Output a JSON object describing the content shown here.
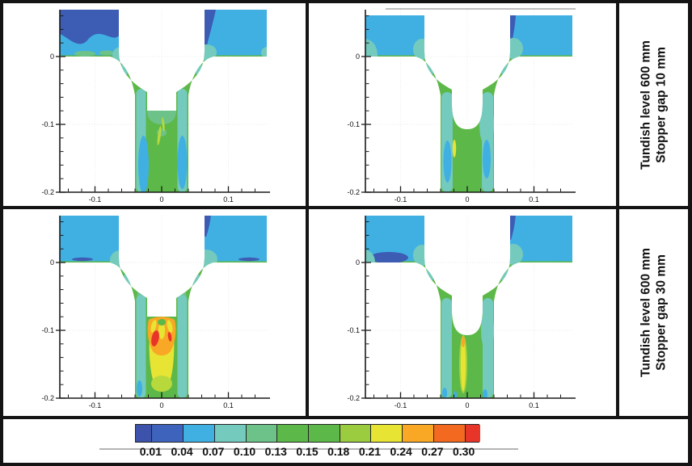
{
  "chart_data": {
    "type": "heatmap",
    "title": "",
    "subtitle": "",
    "layout": "2x2 contour panels with shared colorbar legend and rotated row labels",
    "axes": {
      "x_ticks": [
        {
          "v": -0.1,
          "label": "-0.1"
        },
        {
          "v": 0,
          "label": "0"
        },
        {
          "v": 0.1,
          "label": "0.1"
        }
      ],
      "y_ticks": [
        {
          "v": 0,
          "label": "0"
        },
        {
          "v": -0.1,
          "label": "-0.1"
        },
        {
          "v": -0.2,
          "label": "-0.2"
        }
      ],
      "minor_step": 0.02,
      "x_range": [
        -0.153,
        0.158
      ],
      "y_range": [
        -0.2,
        0.069
      ],
      "grid": "faint dotted gridlines at major ticks"
    },
    "colorbar": {
      "labels": [
        "0.01",
        "0.04",
        "0.07",
        "0.10",
        "0.13",
        "0.15",
        "0.18",
        "0.21",
        "0.24",
        "0.27",
        "0.30"
      ],
      "colors": [
        "#3c52ab",
        "#3e63bc",
        "#40b0e3",
        "#74cabc",
        "#6cc289",
        "#5cb848",
        "#5cb848",
        "#9bcb3e",
        "#e8e434",
        "#f9a825",
        "#f2691f",
        "#e8352a"
      ],
      "position": "bottom, horizontal, first and last bands half-width"
    },
    "rows": [
      {
        "label_line1": "Tundish level 600 mm",
        "label_line2": "Stopper gap 10 mm"
      },
      {
        "label_line1": "Tundish level 600 mm",
        "label_line2": "Stopper gap 30 mm"
      }
    ],
    "panels": [
      {
        "position": "top-left",
        "stopper_nose": "flat-bottom",
        "row_label": "Tundish level 600 mm, Stopper gap 10 mm",
        "peak_band": "0.13-0.18 green core in nozzle; dark blue (<0.04) pools at top of tundish strips"
      },
      {
        "position": "top-right",
        "stopper_nose": "rounded",
        "row_label": "Tundish level 600 mm, Stopper gap 10 mm",
        "peak_band": "0.21-0.24 thin yellow streak below rounded stopper nose"
      },
      {
        "position": "bottom-left",
        "stopper_nose": "flat-bottom",
        "row_label": "Tundish level 600 mm, Stopper gap 30 mm",
        "peak_band": "0.27-0.30+ red cores in orange/yellow jet below flat stopper bottom"
      },
      {
        "position": "bottom-right",
        "stopper_nose": "rounded",
        "row_label": "Tundish level 600 mm, Stopper gap 30 mm",
        "peak_band": "0.21-0.27 yellow/orange streak below rounded stopper nose"
      }
    ]
  }
}
